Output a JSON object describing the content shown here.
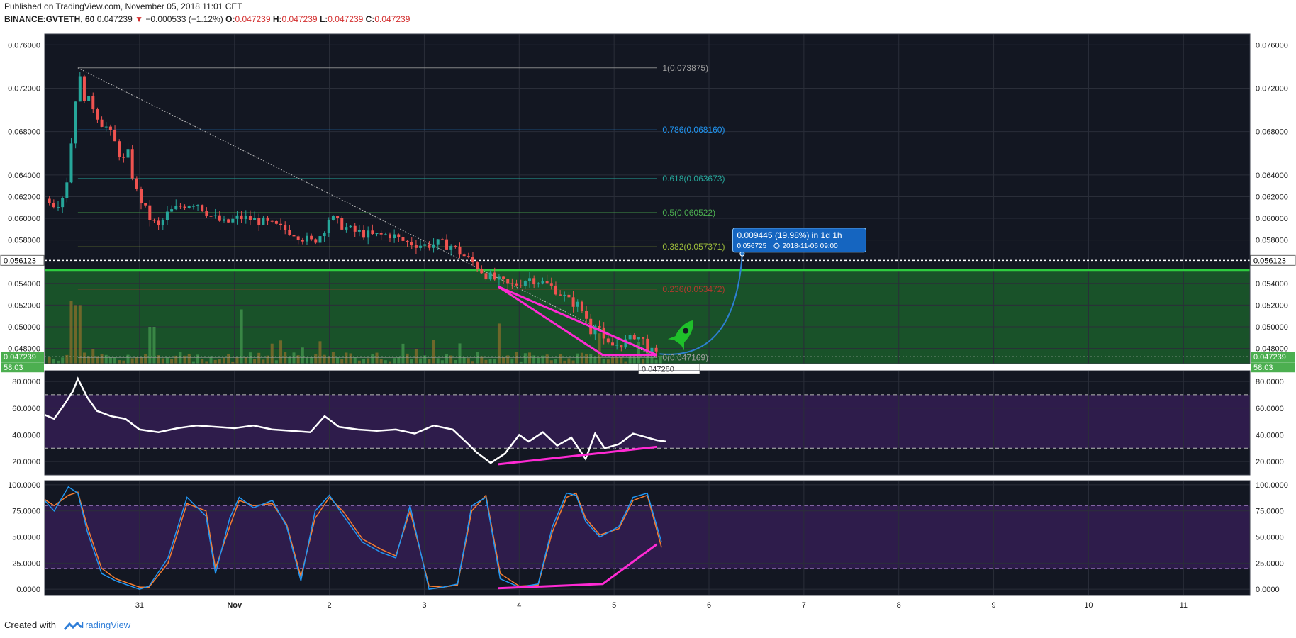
{
  "header": {
    "published": "Published on TradingView.com, November 05, 2018 11:01 CET",
    "symbol": "BINANCE:GVTETH, 60",
    "last": "0.047239",
    "change_arrow": "▼",
    "change": "−0.000533 (−1.12%)",
    "ohlc": [
      {
        "k": "O:",
        "v": "0.047239"
      },
      {
        "k": "H:",
        "v": "0.047239"
      },
      {
        "k": "L:",
        "v": "0.047239"
      },
      {
        "k": "C:",
        "v": "0.047239"
      }
    ]
  },
  "footer": {
    "created_with": "Created with",
    "brand": "TradingView"
  },
  "chart_data": [
    {
      "type": "candlestick",
      "panel": "price",
      "y_ticks": [
        "0.076000",
        "0.072000",
        "0.068000",
        "0.064000",
        "0.062000",
        "0.060000",
        "0.058000",
        "0.054000",
        "0.052000",
        "0.050000",
        "0.048000"
      ],
      "y_tick_values": [
        0.076,
        0.072,
        0.068,
        0.064,
        0.062,
        0.06,
        0.058,
        0.054,
        0.052,
        0.05,
        0.048
      ],
      "x_ticks": [
        "31",
        "Nov",
        "2",
        "3",
        "4",
        "5",
        "6",
        "7",
        "8",
        "9",
        "10",
        "11"
      ],
      "x_tick_days": [
        31,
        32,
        33,
        34,
        35,
        36,
        37,
        38,
        39,
        40,
        41,
        42
      ],
      "x_range_days": [
        30.0,
        42.7
      ],
      "ylim": [
        0.0466,
        0.077
      ],
      "last_price_label": "0.047239",
      "countdown_label": "58:03",
      "current_line_label": "0.056123",
      "current_line_value": 0.056123,
      "green_line_value": 0.05525,
      "close_path": [
        [
          30.05,
          0.0618
        ],
        [
          30.12,
          0.0612
        ],
        [
          30.22,
          0.0625
        ],
        [
          30.3,
          0.0685
        ],
        [
          30.35,
          0.0735
        ],
        [
          30.42,
          0.0712
        ],
        [
          30.5,
          0.0705
        ],
        [
          30.58,
          0.069
        ],
        [
          30.66,
          0.0683
        ],
        [
          30.75,
          0.0668
        ],
        [
          30.82,
          0.0652
        ],
        [
          30.88,
          0.066
        ],
        [
          30.95,
          0.0628
        ],
        [
          31.05,
          0.061
        ],
        [
          31.12,
          0.0598
        ],
        [
          31.2,
          0.0592
        ],
        [
          31.3,
          0.0605
        ],
        [
          31.45,
          0.0612
        ],
        [
          31.6,
          0.0615
        ],
        [
          31.75,
          0.0602
        ],
        [
          31.9,
          0.0595
        ],
        [
          32.05,
          0.0601
        ],
        [
          32.25,
          0.0598
        ],
        [
          32.45,
          0.0592
        ],
        [
          32.6,
          0.0588
        ],
        [
          32.72,
          0.0582
        ],
        [
          32.82,
          0.0578
        ],
        [
          32.92,
          0.0586
        ],
        [
          33.0,
          0.0601
        ],
        [
          33.1,
          0.0595
        ],
        [
          33.25,
          0.0588
        ],
        [
          33.45,
          0.0584
        ],
        [
          33.65,
          0.0585
        ],
        [
          33.8,
          0.0578
        ],
        [
          34.0,
          0.0575
        ],
        [
          34.15,
          0.0577
        ],
        [
          34.28,
          0.0575
        ],
        [
          34.38,
          0.0568
        ],
        [
          34.5,
          0.056
        ],
        [
          34.65,
          0.0548
        ],
        [
          34.78,
          0.0542
        ],
        [
          34.9,
          0.0538
        ],
        [
          35.0,
          0.054
        ],
        [
          35.1,
          0.0545
        ],
        [
          35.22,
          0.0542
        ],
        [
          35.32,
          0.0538
        ],
        [
          35.42,
          0.0532
        ],
        [
          35.52,
          0.0524
        ],
        [
          35.62,
          0.052
        ],
        [
          35.7,
          0.051
        ],
        [
          35.76,
          0.0495
        ],
        [
          35.82,
          0.051
        ],
        [
          35.88,
          0.0486
        ],
        [
          35.95,
          0.0482
        ],
        [
          36.05,
          0.0484
        ],
        [
          36.15,
          0.0487
        ],
        [
          36.22,
          0.0493
        ],
        [
          36.3,
          0.0488
        ],
        [
          36.36,
          0.048
        ],
        [
          36.42,
          0.0474
        ],
        [
          36.48,
          0.0473
        ]
      ],
      "volume_spikes": [
        [
          30.28,
          0.0524
        ],
        [
          30.35,
          0.052
        ],
        [
          31.13,
          0.05
        ],
        [
          32.07,
          0.0516
        ],
        [
          34.78,
          0.0503
        ],
        [
          35.83,
          0.0494
        ]
      ],
      "fib_levels": [
        {
          "label": "1(0.073875)",
          "value": 0.073875,
          "color": "#9e9e9e"
        },
        {
          "label": "0.786(0.068160)",
          "value": 0.06816,
          "color": "#2196f3"
        },
        {
          "label": "0.618(0.063673)",
          "value": 0.063673,
          "color": "#26a69a"
        },
        {
          "label": "0.5(0.060522)",
          "value": 0.060522,
          "color": "#4caf50"
        },
        {
          "label": "0.382(0.057371)",
          "value": 0.057371,
          "color": "#9fbf3b"
        },
        {
          "label": "0.236(0.053472)",
          "value": 0.053472,
          "color": "#b03a2e"
        },
        {
          "label": "0(0.047169)",
          "value": 0.047169,
          "color": "#9e9e9e"
        }
      ],
      "fib_start_day": 30.35,
      "fib_end_day": 36.45,
      "low_label": "0.047280",
      "trend_top": [
        [
          34.78,
          0.0537
        ],
        [
          36.45,
          0.0474
        ]
      ],
      "trend_bottom": [
        [
          34.78,
          0.0537
        ],
        [
          35.88,
          0.0474
        ]
      ],
      "measure_label_1": "0.009445 (19.98%) in 1d 1h",
      "measure_label_2": "0.056725",
      "measure_label_3": "2018-11-06  09:00",
      "target_point": [
        37.35,
        0.056725
      ]
    },
    {
      "type": "line",
      "panel": "rsi",
      "y_ticks": [
        "80.0000",
        "60.0000",
        "40.0000",
        "20.0000"
      ],
      "y_tick_values": [
        80,
        60,
        40,
        20
      ],
      "ylim": [
        10,
        88
      ],
      "bands": [
        70,
        30
      ],
      "x": [
        30.0,
        30.1,
        30.2,
        30.3,
        30.35,
        30.45,
        30.55,
        30.7,
        30.85,
        31.0,
        31.2,
        31.4,
        31.6,
        31.8,
        32.0,
        32.2,
        32.4,
        32.6,
        32.8,
        32.95,
        33.1,
        33.3,
        33.5,
        33.7,
        33.9,
        34.1,
        34.3,
        34.45,
        34.55,
        34.7,
        34.85,
        35.0,
        35.1,
        35.25,
        35.4,
        35.55,
        35.7,
        35.8,
        35.9,
        36.05,
        36.2,
        36.35,
        36.45,
        36.55
      ],
      "values": [
        55,
        52,
        62,
        73,
        82,
        68,
        58,
        54,
        52,
        44,
        42,
        45,
        47,
        46,
        45,
        47,
        44,
        43,
        42,
        54,
        46,
        44,
        43,
        44,
        41,
        47,
        44,
        34,
        27,
        19,
        26,
        40,
        35,
        42,
        32,
        38,
        22,
        41,
        30,
        33,
        41,
        38,
        36,
        35
      ],
      "div_line": [
        [
          34.78,
          18
        ],
        [
          36.45,
          31
        ]
      ]
    },
    {
      "type": "line",
      "panel": "stoch",
      "y_ticks": [
        "100.0000",
        "75.0000",
        "50.0000",
        "25.0000",
        "0.0000"
      ],
      "y_tick_values": [
        100,
        75,
        50,
        25,
        0
      ],
      "ylim": [
        -6,
        104
      ],
      "bands": [
        80,
        20
      ],
      "k_x": [
        30.0,
        30.1,
        30.25,
        30.35,
        30.45,
        30.6,
        30.75,
        31.0,
        31.1,
        31.3,
        31.5,
        31.7,
        31.8,
        31.95,
        32.05,
        32.2,
        32.4,
        32.55,
        32.7,
        32.85,
        33.0,
        33.15,
        33.35,
        33.55,
        33.7,
        33.85,
        34.05,
        34.2,
        34.35,
        34.5,
        34.65,
        34.8,
        35.0,
        35.2,
        35.35,
        35.5,
        35.6,
        35.7,
        35.85,
        36.05,
        36.2,
        36.35,
        36.5
      ],
      "k_values": [
        85,
        75,
        98,
        92,
        55,
        15,
        8,
        0,
        3,
        30,
        88,
        70,
        15,
        68,
        88,
        78,
        85,
        60,
        8,
        75,
        90,
        70,
        45,
        35,
        30,
        80,
        0,
        2,
        5,
        80,
        88,
        10,
        2,
        5,
        60,
        92,
        90,
        65,
        50,
        60,
        88,
        92,
        45
      ],
      "d_x": [
        30.0,
        30.1,
        30.25,
        30.35,
        30.45,
        30.6,
        30.75,
        31.0,
        31.1,
        31.3,
        31.5,
        31.7,
        31.8,
        31.95,
        32.05,
        32.2,
        32.4,
        32.55,
        32.7,
        32.85,
        33.0,
        33.15,
        33.35,
        33.55,
        33.7,
        33.85,
        34.05,
        34.2,
        34.35,
        34.5,
        34.65,
        34.8,
        35.0,
        35.2,
        35.35,
        35.5,
        35.6,
        35.7,
        35.85,
        36.05,
        36.2,
        36.35,
        36.5
      ],
      "d_values": [
        86,
        80,
        90,
        93,
        60,
        20,
        10,
        2,
        2,
        25,
        82,
        75,
        20,
        60,
        85,
        80,
        82,
        62,
        12,
        68,
        88,
        74,
        48,
        38,
        32,
        75,
        3,
        2,
        4,
        75,
        90,
        15,
        3,
        4,
        55,
        88,
        92,
        68,
        52,
        58,
        85,
        90,
        40
      ],
      "div_line": [
        [
          34.78,
          1
        ],
        [
          35.88,
          5
        ],
        [
          36.45,
          43
        ]
      ]
    }
  ]
}
